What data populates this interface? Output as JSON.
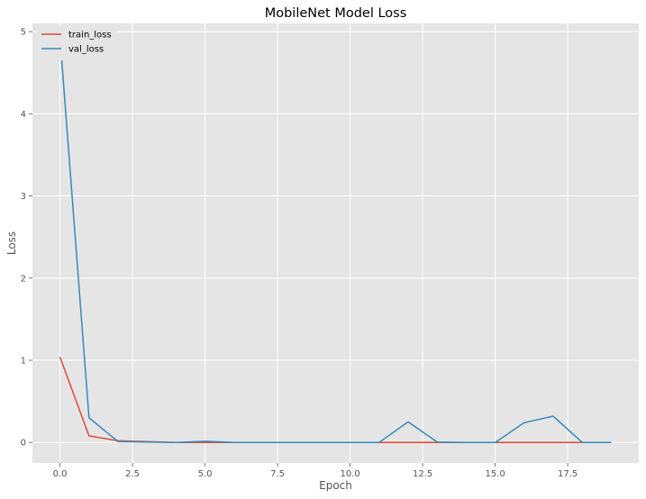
{
  "chart_data": {
    "type": "line",
    "title": "MobileNet Model Loss",
    "xlabel": "Epoch",
    "ylabel": "Loss",
    "xlim": [
      -0.95,
      19.95
    ],
    "ylim": [
      -0.25,
      5.1
    ],
    "x_ticks": [
      0.0,
      2.5,
      5.0,
      7.5,
      10.0,
      12.5,
      15.0,
      17.5
    ],
    "x_tick_labels": [
      "0.0",
      "2.5",
      "5.0",
      "7.5",
      "10.0",
      "12.5",
      "15.0",
      "17.5"
    ],
    "y_ticks": [
      0,
      1,
      2,
      3,
      4,
      5
    ],
    "y_tick_labels": [
      "0",
      "1",
      "2",
      "3",
      "4",
      "5"
    ],
    "grid": true,
    "legend_position": "top-left",
    "background_color": "#e5e5e5",
    "grid_color": "#ffffff",
    "x": [
      0,
      1,
      2,
      3,
      4,
      5,
      6,
      7,
      8,
      9,
      10,
      11,
      12,
      13,
      14,
      15,
      16,
      17,
      18,
      19
    ],
    "series": [
      {
        "name": "train_loss",
        "color": "#e24a33",
        "values": [
          1.04,
          0.08,
          0.02,
          0.01,
          0.0,
          0.0,
          0.0,
          0.0,
          0.0,
          0.0,
          0.0,
          0.0,
          0.0,
          0.0,
          0.0,
          0.0,
          0.0,
          0.0,
          0.0,
          0.0
        ]
      },
      {
        "name": "val_loss",
        "color": "#348abd",
        "values": [
          4.93,
          0.3,
          0.01,
          0.005,
          0.0,
          0.015,
          0.0,
          0.0,
          0.0,
          0.0,
          0.0,
          0.0,
          0.25,
          0.005,
          0.0,
          0.0,
          0.24,
          0.32,
          0.0,
          0.0
        ]
      }
    ]
  }
}
